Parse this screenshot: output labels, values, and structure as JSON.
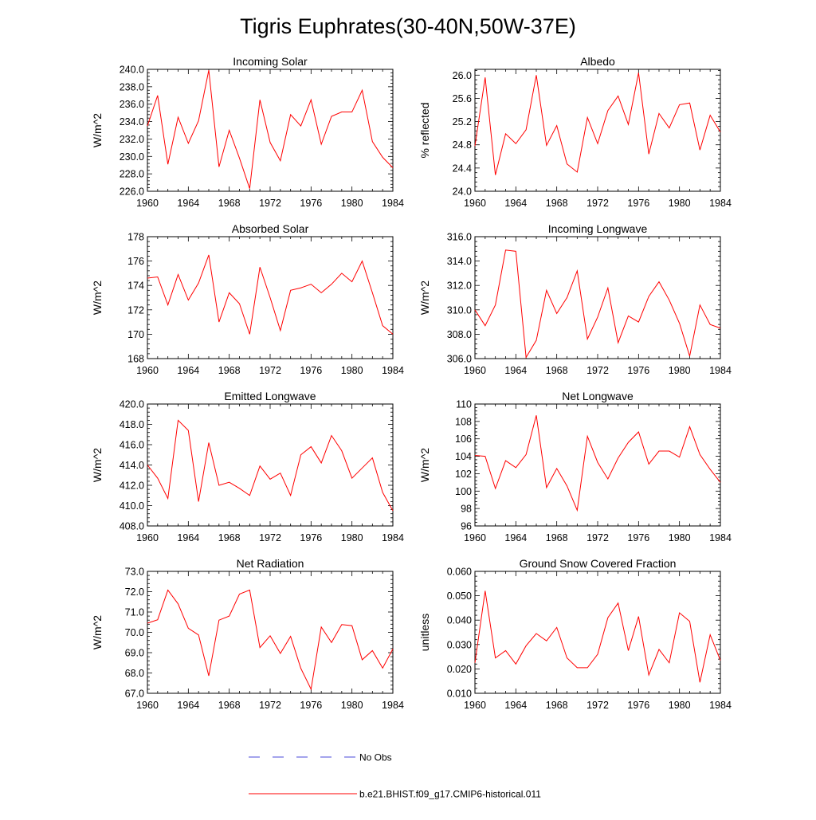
{
  "title": "Tigris Euphrates(30-40N,50W-37E)",
  "colors": {
    "model_line": "#ff0000",
    "obs_line": "#4a4ad8",
    "axis": "#000000"
  },
  "legend": {
    "obs_label": "No Obs",
    "model_label": "b.e21.BHIST.f09_g17.CMIP6-historical.011"
  },
  "chart_data": [
    {
      "type": "line",
      "title": "Incoming Solar",
      "xlabel": "",
      "ylabel": "W/m^2",
      "xlim": [
        1960,
        1984
      ],
      "ylim": [
        226,
        240
      ],
      "xticks": [
        1960,
        1964,
        1968,
        1972,
        1976,
        1980,
        1984
      ],
      "yticks": [
        226,
        228,
        230,
        232,
        234,
        236,
        238,
        240
      ],
      "ydecimals": 1,
      "x": [
        1960,
        1961,
        1962,
        1963,
        1964,
        1965,
        1966,
        1967,
        1968,
        1969,
        1970,
        1971,
        1972,
        1973,
        1974,
        1975,
        1976,
        1977,
        1978,
        1979,
        1980,
        1981,
        1982,
        1983,
        1984
      ],
      "series": [
        {
          "name": "b.e21.BHIST.f09_g17.CMIP6-historical.011",
          "values": [
            233.5,
            237.0,
            229.1,
            234.5,
            231.5,
            234.1,
            239.9,
            228.8,
            233.0,
            229.8,
            226.3,
            236.5,
            231.6,
            229.5,
            234.8,
            233.5,
            236.5,
            231.4,
            234.6,
            235.1,
            235.1,
            237.6,
            231.7,
            229.9,
            228.7
          ]
        }
      ]
    },
    {
      "type": "line",
      "title": "Albedo",
      "xlabel": "",
      "ylabel": "% reflected",
      "xlim": [
        1960,
        1984
      ],
      "ylim": [
        24.0,
        26.1
      ],
      "xticks": [
        1960,
        1964,
        1968,
        1972,
        1976,
        1980,
        1984
      ],
      "yticks": [
        24.0,
        24.4,
        24.8,
        25.2,
        25.6,
        26.0
      ],
      "ydecimals": 1,
      "x": [
        1960,
        1961,
        1962,
        1963,
        1964,
        1965,
        1966,
        1967,
        1968,
        1969,
        1970,
        1971,
        1972,
        1973,
        1974,
        1975,
        1976,
        1977,
        1978,
        1979,
        1980,
        1981,
        1982,
        1983,
        1984
      ],
      "series": [
        {
          "name": "b.e21.BHIST.f09_g17.CMIP6-historical.011",
          "values": [
            24.78,
            25.96,
            24.28,
            24.99,
            24.82,
            25.06,
            26.0,
            24.79,
            25.13,
            24.47,
            24.33,
            25.27,
            24.82,
            25.39,
            25.64,
            25.15,
            26.04,
            24.64,
            25.34,
            25.09,
            25.49,
            25.52,
            24.71,
            25.31,
            25.02
          ]
        }
      ]
    },
    {
      "type": "line",
      "title": "Absorbed Solar",
      "xlabel": "",
      "ylabel": "W/m^2",
      "xlim": [
        1960,
        1984
      ],
      "ylim": [
        168,
        178
      ],
      "xticks": [
        1960,
        1964,
        1968,
        1972,
        1976,
        1980,
        1984
      ],
      "yticks": [
        168,
        170,
        172,
        174,
        176,
        178
      ],
      "ydecimals": 0,
      "x": [
        1960,
        1961,
        1962,
        1963,
        1964,
        1965,
        1966,
        1967,
        1968,
        1969,
        1970,
        1971,
        1972,
        1973,
        1974,
        1975,
        1976,
        1977,
        1978,
        1979,
        1980,
        1981,
        1982,
        1983,
        1984
      ],
      "series": [
        {
          "name": "b.e21.BHIST.f09_g17.CMIP6-historical.011",
          "values": [
            174.6,
            174.7,
            172.4,
            174.9,
            172.8,
            174.2,
            176.5,
            171.0,
            173.4,
            172.5,
            170.0,
            175.5,
            173.0,
            170.3,
            173.6,
            173.8,
            174.1,
            173.4,
            174.1,
            175.0,
            174.3,
            176.0,
            173.4,
            170.7,
            170.0
          ]
        }
      ]
    },
    {
      "type": "line",
      "title": "Incoming Longwave",
      "xlabel": "",
      "ylabel": "W/m^2",
      "xlim": [
        1960,
        1984
      ],
      "ylim": [
        306,
        316
      ],
      "xticks": [
        1960,
        1964,
        1968,
        1972,
        1976,
        1980,
        1984
      ],
      "yticks": [
        306,
        308,
        310,
        312,
        314,
        316
      ],
      "ydecimals": 1,
      "x": [
        1960,
        1961,
        1962,
        1963,
        1964,
        1965,
        1966,
        1967,
        1968,
        1969,
        1970,
        1971,
        1972,
        1973,
        1974,
        1975,
        1976,
        1977,
        1978,
        1979,
        1980,
        1981,
        1982,
        1983,
        1984
      ],
      "series": [
        {
          "name": "b.e21.BHIST.f09_g17.CMIP6-historical.011",
          "values": [
            310.0,
            308.7,
            310.4,
            314.9,
            314.8,
            306.1,
            307.5,
            311.6,
            309.7,
            311.0,
            313.2,
            307.6,
            309.4,
            311.8,
            307.3,
            309.5,
            309.0,
            311.1,
            312.3,
            310.8,
            308.9,
            306.2,
            310.4,
            308.8,
            308.5
          ]
        }
      ]
    },
    {
      "type": "line",
      "title": "Emitted Longwave",
      "xlabel": "",
      "ylabel": "W/m^2",
      "xlim": [
        1960,
        1984
      ],
      "ylim": [
        408,
        420
      ],
      "xticks": [
        1960,
        1964,
        1968,
        1972,
        1976,
        1980,
        1984
      ],
      "yticks": [
        408,
        410,
        412,
        414,
        416,
        418,
        420
      ],
      "ydecimals": 1,
      "x": [
        1960,
        1961,
        1962,
        1963,
        1964,
        1965,
        1966,
        1967,
        1968,
        1969,
        1970,
        1971,
        1972,
        1973,
        1974,
        1975,
        1976,
        1977,
        1978,
        1979,
        1980,
        1981,
        1982,
        1983,
        1984
      ],
      "series": [
        {
          "name": "b.e21.BHIST.f09_g17.CMIP6-historical.011",
          "values": [
            414.0,
            412.7,
            410.7,
            418.4,
            417.4,
            410.4,
            416.2,
            412.0,
            412.3,
            411.7,
            411.0,
            413.9,
            412.6,
            413.2,
            411.0,
            415.0,
            415.8,
            414.2,
            416.9,
            415.4,
            412.7,
            413.7,
            414.7,
            411.3,
            409.5
          ]
        }
      ]
    },
    {
      "type": "line",
      "title": "Net Longwave",
      "xlabel": "",
      "ylabel": "W/m^2",
      "xlim": [
        1960,
        1984
      ],
      "ylim": [
        96,
        110
      ],
      "xticks": [
        1960,
        1964,
        1968,
        1972,
        1976,
        1980,
        1984
      ],
      "yticks": [
        96,
        98,
        100,
        102,
        104,
        106,
        108,
        110
      ],
      "ydecimals": 0,
      "x": [
        1960,
        1961,
        1962,
        1963,
        1964,
        1965,
        1966,
        1967,
        1968,
        1969,
        1970,
        1971,
        1972,
        1973,
        1974,
        1975,
        1976,
        1977,
        1978,
        1979,
        1980,
        1981,
        1982,
        1983,
        1984
      ],
      "series": [
        {
          "name": "b.e21.BHIST.f09_g17.CMIP6-historical.011",
          "values": [
            104.1,
            104.0,
            100.3,
            103.5,
            102.7,
            104.2,
            108.7,
            100.4,
            102.6,
            100.6,
            97.8,
            106.3,
            103.3,
            101.4,
            103.8,
            105.6,
            106.8,
            103.1,
            104.6,
            104.6,
            103.9,
            107.4,
            104.2,
            102.5,
            101.0
          ]
        }
      ]
    },
    {
      "type": "line",
      "title": "Net Radiation",
      "xlabel": "",
      "ylabel": "W/m^2",
      "xlim": [
        1960,
        1984
      ],
      "ylim": [
        67,
        73
      ],
      "xticks": [
        1960,
        1964,
        1968,
        1972,
        1976,
        1980,
        1984
      ],
      "yticks": [
        67,
        68,
        69,
        70,
        71,
        72,
        73
      ],
      "ydecimals": 1,
      "x": [
        1960,
        1961,
        1962,
        1963,
        1964,
        1965,
        1966,
        1967,
        1968,
        1969,
        1970,
        1971,
        1972,
        1973,
        1974,
        1975,
        1976,
        1977,
        1978,
        1979,
        1980,
        1981,
        1982,
        1983,
        1984
      ],
      "series": [
        {
          "name": "b.e21.BHIST.f09_g17.CMIP6-historical.011",
          "values": [
            70.45,
            70.62,
            72.08,
            71.4,
            70.2,
            69.87,
            67.86,
            70.6,
            70.8,
            71.88,
            72.08,
            69.25,
            69.83,
            68.96,
            69.8,
            68.23,
            67.2,
            70.26,
            69.5,
            70.38,
            70.33,
            68.65,
            69.1,
            68.24,
            69.18
          ]
        }
      ]
    },
    {
      "type": "line",
      "title": "Ground Snow Covered Fraction",
      "xlabel": "",
      "ylabel": "unitless",
      "xlim": [
        1960,
        1984
      ],
      "ylim": [
        0.01,
        0.06
      ],
      "xticks": [
        1960,
        1964,
        1968,
        1972,
        1976,
        1980,
        1984
      ],
      "yticks": [
        0.01,
        0.02,
        0.03,
        0.04,
        0.05,
        0.06
      ],
      "ydecimals": 3,
      "x": [
        1960,
        1961,
        1962,
        1963,
        1964,
        1965,
        1966,
        1967,
        1968,
        1969,
        1970,
        1971,
        1972,
        1973,
        1974,
        1975,
        1976,
        1977,
        1978,
        1979,
        1980,
        1981,
        1982,
        1983,
        1984
      ],
      "series": [
        {
          "name": "b.e21.BHIST.f09_g17.CMIP6-historical.011",
          "values": [
            0.0225,
            0.052,
            0.0245,
            0.0275,
            0.022,
            0.0295,
            0.0345,
            0.0315,
            0.037,
            0.0245,
            0.0205,
            0.0205,
            0.026,
            0.041,
            0.047,
            0.0275,
            0.0415,
            0.0175,
            0.028,
            0.0225,
            0.043,
            0.0395,
            0.0145,
            0.034,
            0.0235
          ]
        }
      ]
    }
  ]
}
